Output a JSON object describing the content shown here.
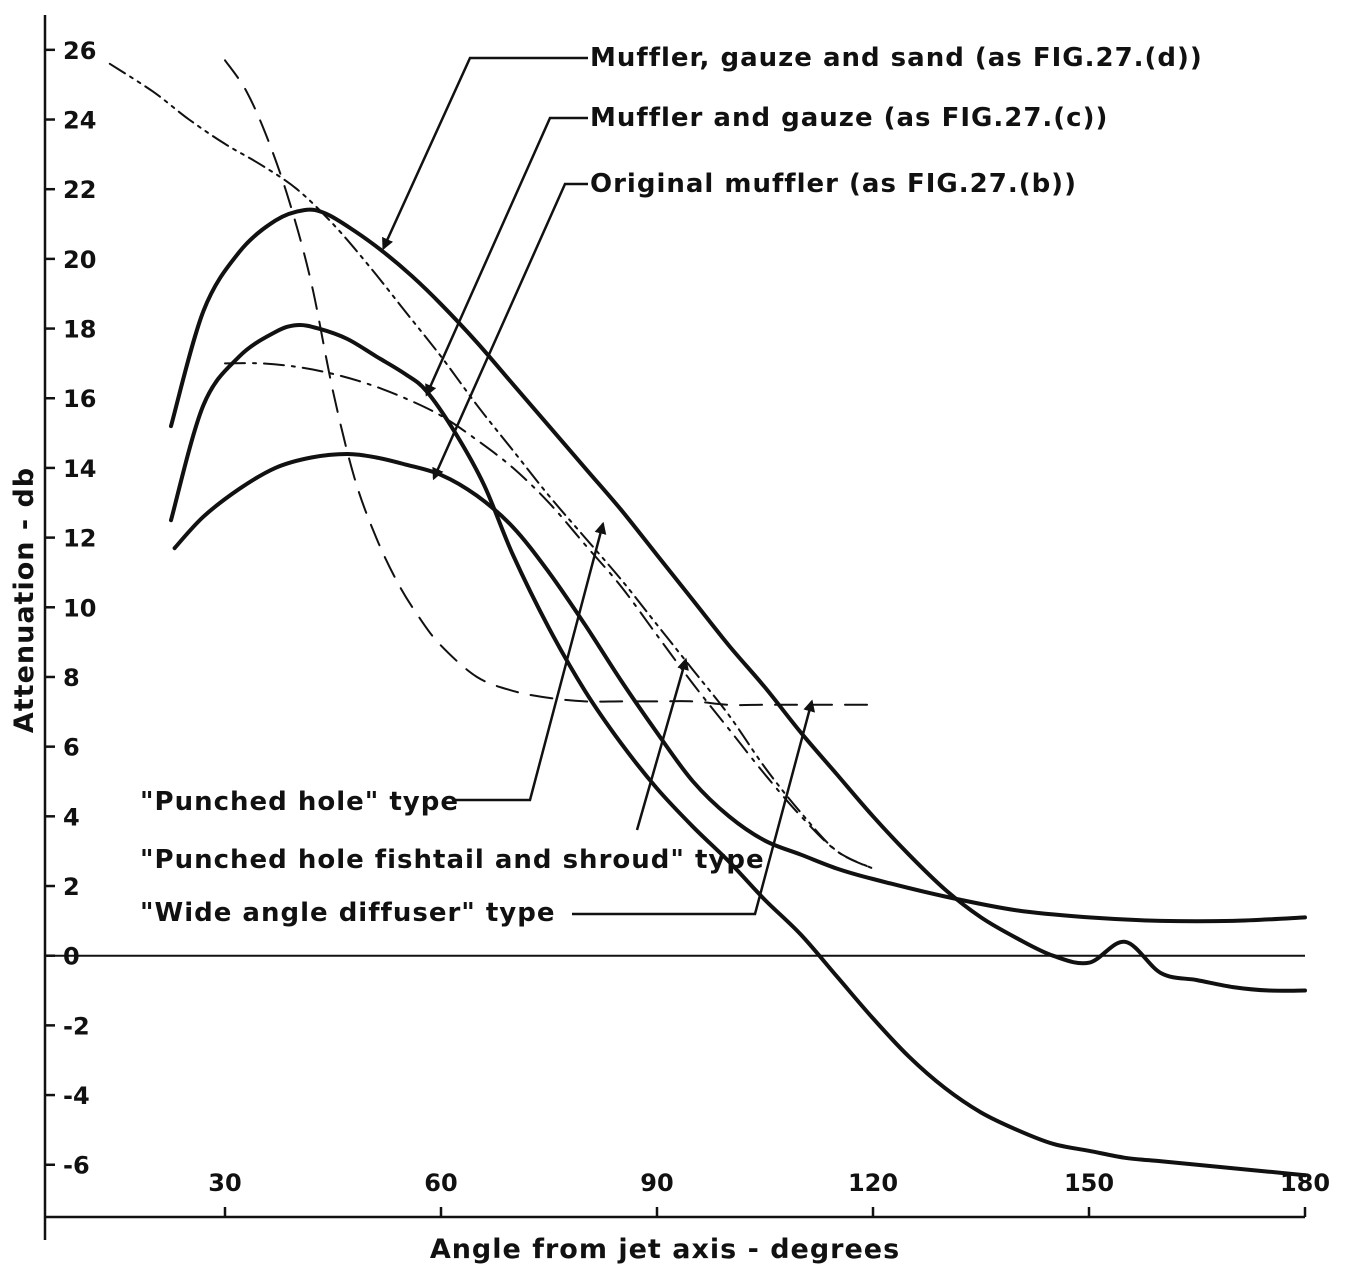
{
  "chart_data": {
    "type": "line",
    "title": "",
    "xlabel": "Angle from jet axis - degrees",
    "ylabel": "Attenuation - db",
    "xlim": [
      5,
      180
    ],
    "ylim": [
      -7.5,
      27
    ],
    "xticks": [
      30,
      60,
      90,
      120,
      150,
      180
    ],
    "yticks": [
      26,
      24,
      22,
      20,
      18,
      16,
      14,
      12,
      10,
      8,
      6,
      4,
      2,
      0,
      -2,
      -4,
      -6
    ],
    "grid": false,
    "zero_line": true,
    "legend": "none",
    "series": [
      {
        "name": "Muffler, gauze and sand (as FIG.27.(d))",
        "style": "solid",
        "x": [
          22.5,
          27,
          32,
          37,
          41,
          44,
          48,
          52,
          56,
          60,
          65,
          70,
          75,
          80,
          85,
          90,
          95,
          100,
          105,
          110,
          115,
          120,
          125,
          130,
          135,
          140,
          145,
          150,
          155,
          160,
          165,
          170,
          175,
          180
        ],
        "y": [
          15.2,
          18.5,
          20.2,
          21.1,
          21.4,
          21.3,
          20.8,
          20.2,
          19.5,
          18.7,
          17.6,
          16.4,
          15.2,
          14.0,
          12.8,
          11.5,
          10.2,
          8.9,
          7.7,
          6.4,
          5.2,
          4.0,
          2.9,
          1.9,
          1.1,
          0.5,
          0.0,
          -0.2,
          0.4,
          -0.5,
          -0.7,
          -0.9,
          -1.0,
          -1.0
        ]
      },
      {
        "name": "Muffler and gauze (as FIG.27.(c))",
        "style": "solid",
        "x": [
          22.5,
          27,
          32,
          37,
          40,
          43,
          47,
          51,
          55,
          58,
          62,
          66,
          70,
          75,
          80,
          85,
          90,
          95,
          100,
          105,
          110,
          115,
          120,
          125,
          130,
          135,
          140,
          145,
          150,
          155,
          160,
          165,
          170,
          175,
          180
        ],
        "y": [
          12.5,
          15.8,
          17.2,
          17.9,
          18.1,
          18.0,
          17.7,
          17.2,
          16.7,
          16.2,
          15.0,
          13.5,
          11.5,
          9.4,
          7.6,
          6.1,
          4.8,
          3.7,
          2.7,
          1.6,
          0.6,
          -0.6,
          -1.8,
          -2.9,
          -3.8,
          -4.5,
          -5.0,
          -5.4,
          -5.6,
          -5.8,
          -5.9,
          -6.0,
          -6.1,
          -6.2,
          -6.3
        ]
      },
      {
        "name": "Original muffler (as FIG.27.(b))",
        "style": "solid",
        "x": [
          23,
          27,
          32,
          37,
          42,
          47,
          51,
          55,
          60,
          65,
          70,
          75,
          80,
          85,
          90,
          95,
          100,
          105,
          110,
          115,
          120,
          130,
          140,
          150,
          160,
          170,
          180
        ],
        "y": [
          11.7,
          12.6,
          13.4,
          14.0,
          14.3,
          14.4,
          14.3,
          14.1,
          13.8,
          13.2,
          12.3,
          11.0,
          9.5,
          7.9,
          6.4,
          5.0,
          4.0,
          3.3,
          2.9,
          2.5,
          2.2,
          1.7,
          1.3,
          1.1,
          1.0,
          1.0,
          1.1
        ]
      },
      {
        "name": "\"Punched hole\" type",
        "style": "dash-dot",
        "x": [
          30,
          35,
          40,
          45,
          50,
          55,
          60,
          65,
          70,
          75,
          80,
          85,
          90,
          95,
          100,
          105,
          110,
          115,
          120
        ],
        "y": [
          17.0,
          17.0,
          16.9,
          16.7,
          16.4,
          16.0,
          15.5,
          14.8,
          14.0,
          13.0,
          11.8,
          10.6,
          9.2,
          7.8,
          6.5,
          5.2,
          4.0,
          3.0,
          2.5
        ]
      },
      {
        "name": "\"Punched hole fishtail and shroud\" type",
        "style": "dash-dot-dot",
        "x": [
          14,
          20,
          25,
          30,
          35,
          40,
          45,
          50,
          55,
          60,
          65,
          70,
          75,
          80,
          85,
          90,
          95,
          100,
          105,
          110,
          115,
          120
        ],
        "y": [
          25.6,
          24.8,
          24.0,
          23.3,
          22.7,
          22.0,
          21.0,
          19.8,
          18.5,
          17.2,
          15.8,
          14.5,
          13.2,
          12.0,
          10.8,
          9.5,
          8.2,
          6.9,
          5.4,
          4.1,
          3.0,
          2.5
        ]
      },
      {
        "name": "\"Wide angle diffuser\" type",
        "style": "dashed",
        "x": [
          30,
          33,
          36,
          39,
          42,
          45,
          48,
          51,
          54,
          57,
          60,
          65,
          70,
          75,
          80,
          85,
          90,
          95,
          100,
          105,
          110,
          115,
          120
        ],
        "y": [
          25.7,
          24.8,
          23.4,
          21.6,
          19.3,
          16.2,
          13.7,
          12.0,
          10.7,
          9.7,
          8.9,
          8.0,
          7.6,
          7.4,
          7.3,
          7.3,
          7.3,
          7.3,
          7.2,
          7.2,
          7.2,
          7.2,
          7.2
        ]
      }
    ],
    "annotations": [
      {
        "text": "Muffler, gauze and sand (as FIG.27.(d))",
        "points_to_series": 0,
        "arrow_at": [
          52,
          20.3
        ]
      },
      {
        "text": "Muffler and gauze (as FIG.27.(c))",
        "points_to_series": 1,
        "arrow_at": [
          58,
          16.1
        ]
      },
      {
        "text": "Original muffler (as FIG.27.(b))",
        "points_to_series": 2,
        "arrow_at": [
          59,
          13.7
        ]
      },
      {
        "text": "\"Punched hole\" type",
        "points_to_series": 3,
        "arrow_at": [
          82.5,
          12.4
        ]
      },
      {
        "text": "\"Punched hole fishtail and shroud\" type",
        "points_to_series": 4,
        "arrow_at": [
          94,
          8.5
        ]
      },
      {
        "text": "\"Wide angle diffuser\" type",
        "points_to_series": 5,
        "arrow_at": [
          111.5,
          7.3
        ]
      }
    ]
  }
}
